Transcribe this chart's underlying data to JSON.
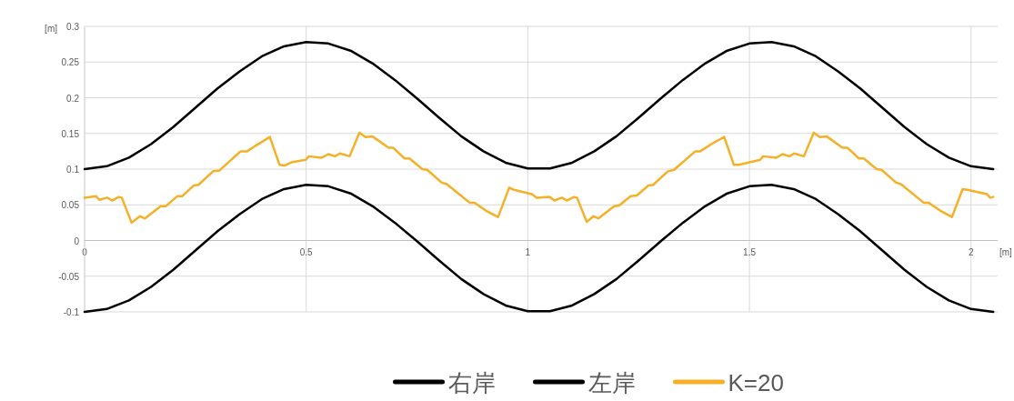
{
  "chart_data": {
    "type": "line",
    "xlabel": "[m]",
    "ylabel": "[m]",
    "xlim": [
      0,
      2.06
    ],
    "ylim": [
      -0.1,
      0.3
    ],
    "xticks": [
      0,
      0.5,
      1,
      1.5,
      2
    ],
    "yticks": [
      -0.1,
      -0.05,
      0,
      0.05,
      0.1,
      0.15,
      0.2,
      0.25,
      0.3
    ],
    "grid": true,
    "legend": "bottom",
    "marker": "none",
    "line_style": "solid",
    "x": [
      0,
      0.05,
      0.1,
      0.15,
      0.2,
      0.25,
      0.3,
      0.35,
      0.4,
      0.45,
      0.5,
      0.55,
      0.6,
      0.65,
      0.7,
      0.75,
      0.8,
      0.85,
      0.9,
      0.95,
      1,
      1.05,
      1.1,
      1.15,
      1.2,
      1.25,
      1.3,
      1.35,
      1.4,
      1.45,
      1.5,
      1.55,
      1.6,
      1.65,
      1.7,
      1.75,
      1.8,
      1.85,
      1.9,
      1.95,
      2,
      2.05
    ],
    "series": [
      {
        "name": "右岸",
        "color": "#000000",
        "values": [
          0.1,
          0.104,
          0.116,
          0.135,
          0.159,
          0.186,
          0.213,
          0.237,
          0.258,
          0.272,
          0.278,
          0.276,
          0.266,
          0.248,
          0.225,
          0.199,
          0.172,
          0.146,
          0.125,
          0.109,
          0.101,
          0.101,
          0.109,
          0.125,
          0.146,
          0.172,
          0.199,
          0.225,
          0.248,
          0.266,
          0.276,
          0.278,
          0.272,
          0.258,
          0.237,
          0.213,
          0.186,
          0.159,
          0.135,
          0.116,
          0.104,
          0.1
        ]
      },
      {
        "name": "左岸",
        "color": "#000000",
        "values": [
          -0.1,
          -0.096,
          -0.084,
          -0.065,
          -0.041,
          -0.014,
          0.013,
          0.037,
          0.058,
          0.072,
          0.078,
          0.076,
          0.066,
          0.048,
          0.025,
          -0.001,
          -0.028,
          -0.054,
          -0.075,
          -0.091,
          -0.099,
          -0.099,
          -0.091,
          -0.075,
          -0.054,
          -0.028,
          -0.001,
          0.025,
          0.048,
          0.066,
          0.076,
          0.078,
          0.072,
          0.058,
          0.037,
          0.013,
          -0.014,
          -0.041,
          -0.065,
          -0.084,
          -0.096,
          -0.1
        ]
      },
      {
        "name": "K=20",
        "color": "#f5b027",
        "x": [
          0,
          0.026,
          0.033,
          0.051,
          0.062,
          0.077,
          0.084,
          0.106,
          0.125,
          0.136,
          0.172,
          0.183,
          0.209,
          0.22,
          0.246,
          0.257,
          0.29,
          0.304,
          0.352,
          0.367,
          0.389,
          0.418,
          0.44,
          0.451,
          0.469,
          0.499,
          0.506,
          0.535,
          0.55,
          0.565,
          0.576,
          0.598,
          0.62,
          0.634,
          0.649,
          0.686,
          0.696,
          0.722,
          0.733,
          0.762,
          0.773,
          0.806,
          0.817,
          0.869,
          0.88,
          0.905,
          0.933,
          0.958,
          0.969,
          1.009,
          1.02,
          1.049,
          1.06,
          1.077,
          1.088,
          1.104,
          1.111,
          1.133,
          1.148,
          1.159,
          1.195,
          1.206,
          1.232,
          1.246,
          1.272,
          1.283,
          1.316,
          1.33,
          1.378,
          1.389,
          1.414,
          1.443,
          1.465,
          1.476,
          1.524,
          1.531,
          1.561,
          1.575,
          1.59,
          1.601,
          1.623,
          1.645,
          1.659,
          1.674,
          1.71,
          1.721,
          1.747,
          1.758,
          1.787,
          1.798,
          1.831,
          1.842,
          1.893,
          1.904,
          1.93,
          1.957,
          1.981,
          1.992,
          2.036,
          2.043,
          2.05
        ],
        "values": [
          0.06,
          0.062,
          0.057,
          0.06,
          0.056,
          0.061,
          0.06,
          0.025,
          0.034,
          0.031,
          0.048,
          0.048,
          0.062,
          0.062,
          0.077,
          0.078,
          0.097,
          0.098,
          0.125,
          0.125,
          0.134,
          0.145,
          0.106,
          0.105,
          0.11,
          0.113,
          0.118,
          0.116,
          0.121,
          0.118,
          0.122,
          0.118,
          0.151,
          0.145,
          0.146,
          0.13,
          0.13,
          0.115,
          0.115,
          0.1,
          0.099,
          0.081,
          0.079,
          0.053,
          0.053,
          0.042,
          0.033,
          0.074,
          0.071,
          0.065,
          0.06,
          0.061,
          0.056,
          0.06,
          0.056,
          0.061,
          0.06,
          0.026,
          0.034,
          0.031,
          0.048,
          0.049,
          0.062,
          0.063,
          0.077,
          0.078,
          0.097,
          0.099,
          0.125,
          0.125,
          0.135,
          0.145,
          0.106,
          0.106,
          0.113,
          0.118,
          0.116,
          0.121,
          0.118,
          0.122,
          0.118,
          0.151,
          0.145,
          0.146,
          0.13,
          0.13,
          0.115,
          0.115,
          0.1,
          0.099,
          0.081,
          0.079,
          0.053,
          0.053,
          0.042,
          0.033,
          0.072,
          0.071,
          0.065,
          0.06,
          0.061
        ]
      }
    ]
  }
}
